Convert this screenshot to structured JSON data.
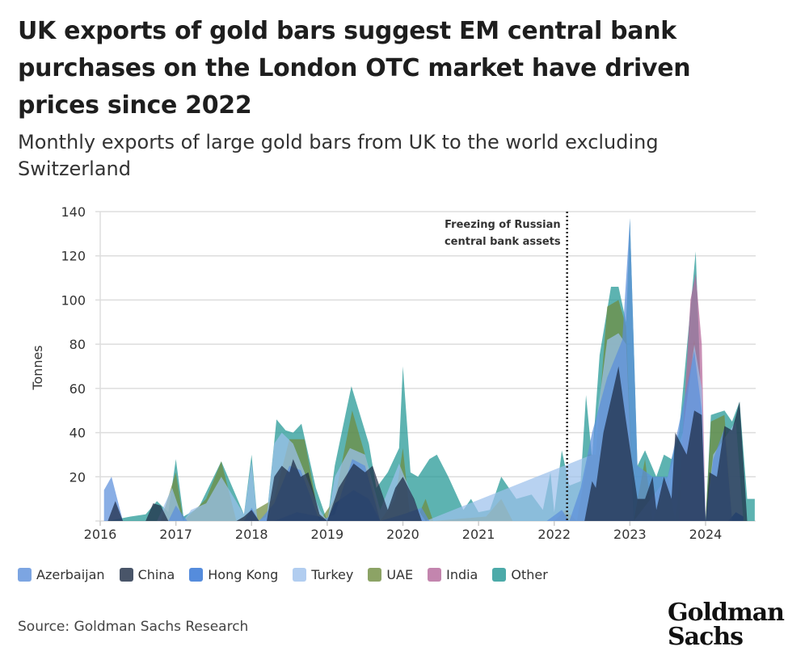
{
  "title": "UK exports of gold bars suggest EM central bank purchases on the London OTC market have driven prices since 2022",
  "subtitle": "Monthly exports of large gold bars from UK to the world excluding Switzerland",
  "source": "Source: Goldman Sachs Research",
  "logo": {
    "line1": "Goldman",
    "line2": "Sachs"
  },
  "chart_data": {
    "type": "area",
    "ylabel": "Tonnes",
    "xlabel": "",
    "ylim": [
      0,
      140
    ],
    "xlim": [
      2016,
      2024.75
    ],
    "yticks": [
      20,
      40,
      60,
      80,
      100,
      120,
      140
    ],
    "xticks": [
      "2016",
      "2017",
      "2018",
      "2019",
      "2020",
      "2021",
      "2022",
      "2023",
      "2024"
    ],
    "grid": true,
    "legend_position": "bottom",
    "annotation": {
      "x": 2022.17,
      "lines": [
        "Freezing of Russian",
        "central bank assets"
      ]
    },
    "series": [
      {
        "name": "Other",
        "color": "#1f9593",
        "points": [
          [
            2016.1,
            0
          ],
          [
            2016.4,
            2
          ],
          [
            2016.6,
            3
          ],
          [
            2016.75,
            9
          ],
          [
            2016.9,
            4
          ],
          [
            2017.0,
            28
          ],
          [
            2017.1,
            2
          ],
          [
            2017.3,
            6
          ],
          [
            2017.6,
            27
          ],
          [
            2017.9,
            3
          ],
          [
            2018.0,
            30
          ],
          [
            2018.08,
            0
          ],
          [
            2018.2,
            2
          ],
          [
            2018.33,
            46
          ],
          [
            2018.45,
            41
          ],
          [
            2018.55,
            40
          ],
          [
            2018.66,
            44
          ],
          [
            2018.85,
            15
          ],
          [
            2019.0,
            0
          ],
          [
            2019.1,
            25
          ],
          [
            2019.32,
            61
          ],
          [
            2019.55,
            35
          ],
          [
            2019.65,
            15
          ],
          [
            2019.8,
            22
          ],
          [
            2019.95,
            33
          ],
          [
            2020.0,
            70
          ],
          [
            2020.1,
            22
          ],
          [
            2020.2,
            20
          ],
          [
            2020.35,
            28
          ],
          [
            2020.45,
            30
          ],
          [
            2020.6,
            20
          ],
          [
            2020.8,
            5
          ],
          [
            2020.9,
            10
          ],
          [
            2021.0,
            4
          ],
          [
            2021.15,
            5
          ],
          [
            2021.3,
            20
          ],
          [
            2021.5,
            10
          ],
          [
            2021.7,
            12
          ],
          [
            2021.85,
            5
          ],
          [
            2021.95,
            22
          ],
          [
            2022.0,
            4
          ],
          [
            2022.1,
            32
          ],
          [
            2022.2,
            16
          ],
          [
            2022.35,
            18
          ],
          [
            2022.42,
            57
          ],
          [
            2022.5,
            28
          ],
          [
            2022.6,
            75
          ],
          [
            2022.75,
            106
          ],
          [
            2022.85,
            106
          ],
          [
            2022.95,
            90
          ],
          [
            2023.0,
            137
          ],
          [
            2023.1,
            25
          ],
          [
            2023.2,
            32
          ],
          [
            2023.35,
            20
          ],
          [
            2023.45,
            30
          ],
          [
            2023.55,
            28
          ],
          [
            2023.65,
            40
          ],
          [
            2023.87,
            122
          ],
          [
            2024.0,
            0
          ],
          [
            2024.07,
            48
          ],
          [
            2024.25,
            50
          ],
          [
            2024.35,
            45
          ],
          [
            2024.45,
            54
          ],
          [
            2024.55,
            10
          ],
          [
            2024.65,
            10
          ]
        ]
      },
      {
        "name": "UAE",
        "color": "#6f8c3e",
        "points": [
          [
            2016.8,
            0
          ],
          [
            2017.0,
            22
          ],
          [
            2017.1,
            0
          ],
          [
            2017.4,
            10
          ],
          [
            2017.6,
            27
          ],
          [
            2017.8,
            0
          ],
          [
            2018.3,
            10
          ],
          [
            2018.5,
            37
          ],
          [
            2018.7,
            37
          ],
          [
            2018.9,
            0
          ],
          [
            2019.1,
            10
          ],
          [
            2019.33,
            50
          ],
          [
            2019.5,
            30
          ],
          [
            2019.7,
            0
          ],
          [
            2019.9,
            10
          ],
          [
            2020.0,
            33
          ],
          [
            2020.1,
            0
          ],
          [
            2020.2,
            2
          ],
          [
            2020.3,
            10
          ],
          [
            2020.4,
            0
          ],
          [
            2021.1,
            2
          ],
          [
            2021.3,
            10
          ],
          [
            2021.45,
            0
          ],
          [
            2022.0,
            0
          ],
          [
            2022.15,
            5
          ],
          [
            2022.3,
            0
          ],
          [
            2022.45,
            30
          ],
          [
            2022.55,
            30
          ],
          [
            2022.7,
            97
          ],
          [
            2022.85,
            100
          ],
          [
            2022.95,
            88
          ],
          [
            2023.05,
            0
          ],
          [
            2023.2,
            28
          ],
          [
            2023.3,
            0
          ],
          [
            2023.5,
            20
          ],
          [
            2023.6,
            0
          ],
          [
            2023.85,
            82
          ],
          [
            2024.0,
            0
          ],
          [
            2024.07,
            45
          ],
          [
            2024.25,
            48
          ],
          [
            2024.35,
            0
          ]
        ]
      },
      {
        "name": "India",
        "color": "#b4679a",
        "points": [
          [
            2023.65,
            0
          ],
          [
            2023.7,
            40
          ],
          [
            2023.8,
            100
          ],
          [
            2023.87,
            112
          ],
          [
            2023.95,
            80
          ],
          [
            2024.0,
            0
          ]
        ]
      },
      {
        "name": "Turkey",
        "color": "#9dc1ec",
        "points": [
          [
            2016.75,
            0
          ],
          [
            2016.95,
            15
          ],
          [
            2017.1,
            0
          ],
          [
            2017.2,
            5
          ],
          [
            2017.4,
            8
          ],
          [
            2017.6,
            20
          ],
          [
            2017.9,
            3
          ],
          [
            2018.0,
            27
          ],
          [
            2018.08,
            0
          ],
          [
            2018.2,
            2
          ],
          [
            2018.3,
            35
          ],
          [
            2018.4,
            40
          ],
          [
            2018.55,
            35
          ],
          [
            2018.7,
            22
          ],
          [
            2018.9,
            5
          ],
          [
            2019.0,
            0
          ],
          [
            2019.1,
            20
          ],
          [
            2019.3,
            33
          ],
          [
            2019.5,
            30
          ],
          [
            2019.7,
            5
          ],
          [
            2019.95,
            26
          ],
          [
            2020.2,
            5
          ],
          [
            2020.3,
            0
          ],
          [
            2022.5,
            30
          ],
          [
            2022.7,
            82
          ],
          [
            2022.85,
            85
          ],
          [
            2022.95,
            80
          ],
          [
            2023.05,
            0
          ],
          [
            2023.5,
            20
          ],
          [
            2023.7,
            40
          ],
          [
            2023.85,
            80
          ],
          [
            2023.95,
            60
          ],
          [
            2024.0,
            0
          ],
          [
            2024.1,
            30
          ],
          [
            2024.4,
            45
          ],
          [
            2024.5,
            0
          ]
        ]
      },
      {
        "name": "Hong Kong",
        "color": "#2b6fd3",
        "points": [
          [
            2018.3,
            0
          ],
          [
            2018.6,
            4
          ],
          [
            2018.9,
            2
          ],
          [
            2019.0,
            0
          ],
          [
            2019.1,
            8
          ],
          [
            2019.35,
            14
          ],
          [
            2019.55,
            10
          ],
          [
            2019.7,
            0
          ],
          [
            2024.3,
            0
          ],
          [
            2024.4,
            4
          ],
          [
            2024.5,
            2
          ]
        ]
      },
      {
        "name": "Azerbaijan",
        "color": "#5b8fdb",
        "points": [
          [
            2016.05,
            14
          ],
          [
            2016.15,
            20
          ],
          [
            2016.3,
            0
          ],
          [
            2016.9,
            0
          ],
          [
            2017.0,
            7
          ],
          [
            2017.15,
            0
          ],
          [
            2017.9,
            0
          ],
          [
            2018.0,
            6
          ],
          [
            2018.1,
            0
          ],
          [
            2018.3,
            8
          ],
          [
            2018.5,
            25
          ],
          [
            2018.65,
            23
          ],
          [
            2018.9,
            0
          ],
          [
            2019.1,
            3
          ],
          [
            2019.33,
            28
          ],
          [
            2019.5,
            25
          ],
          [
            2019.7,
            0
          ],
          [
            2020.0,
            3
          ],
          [
            2020.25,
            6
          ],
          [
            2020.35,
            0
          ],
          [
            2021.9,
            0
          ],
          [
            2022.1,
            5
          ],
          [
            2022.2,
            0
          ],
          [
            2022.35,
            15
          ],
          [
            2022.5,
            40
          ],
          [
            2022.7,
            65
          ],
          [
            2022.9,
            82
          ],
          [
            2023.0,
            137
          ],
          [
            2023.1,
            25
          ],
          [
            2023.3,
            20
          ],
          [
            2023.5,
            20
          ],
          [
            2023.75,
            60
          ],
          [
            2023.85,
            77
          ],
          [
            2023.95,
            50
          ],
          [
            2024.0,
            0
          ],
          [
            2024.1,
            28
          ],
          [
            2024.25,
            42
          ],
          [
            2024.35,
            0
          ]
        ]
      },
      {
        "name": "China",
        "color": "#1c2a44",
        "points": [
          [
            2016.1,
            0
          ],
          [
            2016.2,
            9
          ],
          [
            2016.3,
            0
          ],
          [
            2016.6,
            0
          ],
          [
            2016.7,
            8
          ],
          [
            2016.8,
            7
          ],
          [
            2016.9,
            0
          ],
          [
            2017.8,
            0
          ],
          [
            2017.9,
            2
          ],
          [
            2018.0,
            5
          ],
          [
            2018.1,
            0
          ],
          [
            2018.2,
            0
          ],
          [
            2018.3,
            20
          ],
          [
            2018.4,
            25
          ],
          [
            2018.5,
            22
          ],
          [
            2018.55,
            28
          ],
          [
            2018.65,
            20
          ],
          [
            2018.75,
            22
          ],
          [
            2018.9,
            3
          ],
          [
            2019.0,
            0
          ],
          [
            2019.15,
            15
          ],
          [
            2019.35,
            26
          ],
          [
            2019.5,
            22
          ],
          [
            2019.6,
            25
          ],
          [
            2019.8,
            5
          ],
          [
            2019.9,
            15
          ],
          [
            2020.0,
            20
          ],
          [
            2020.15,
            10
          ],
          [
            2020.25,
            0
          ],
          [
            2022.4,
            0
          ],
          [
            2022.5,
            18
          ],
          [
            2022.55,
            15
          ],
          [
            2022.65,
            40
          ],
          [
            2022.85,
            70
          ],
          [
            2022.95,
            45
          ],
          [
            2023.1,
            10
          ],
          [
            2023.2,
            10
          ],
          [
            2023.3,
            20
          ],
          [
            2023.35,
            5
          ],
          [
            2023.45,
            20
          ],
          [
            2023.55,
            10
          ],
          [
            2023.6,
            40
          ],
          [
            2023.75,
            30
          ],
          [
            2023.85,
            50
          ],
          [
            2023.95,
            48
          ],
          [
            2024.0,
            0
          ],
          [
            2024.05,
            22
          ],
          [
            2024.15,
            20
          ],
          [
            2024.25,
            43
          ],
          [
            2024.35,
            41
          ],
          [
            2024.45,
            54
          ],
          [
            2024.55,
            0
          ]
        ]
      }
    ]
  },
  "legend": [
    {
      "label": "Azerbaijan",
      "color": "#5b8fdb"
    },
    {
      "label": "China",
      "color": "#1c2a44"
    },
    {
      "label": "Hong Kong",
      "color": "#2b6fd3"
    },
    {
      "label": "Turkey",
      "color": "#9dc1ec"
    },
    {
      "label": "UAE",
      "color": "#6f8c3e"
    },
    {
      "label": "India",
      "color": "#b4679a"
    },
    {
      "label": "Other",
      "color": "#1f9593"
    }
  ]
}
